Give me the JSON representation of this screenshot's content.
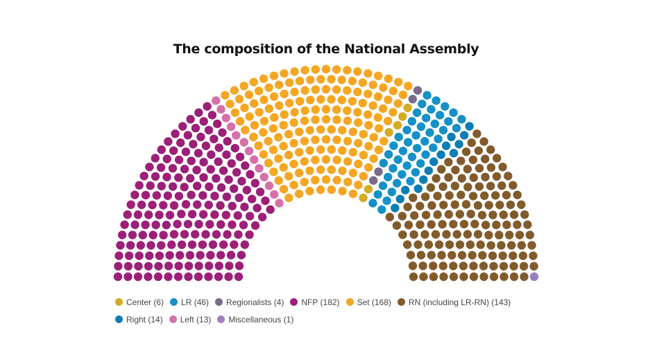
{
  "chart_data": {
    "type": "parliament",
    "title": "The composition of the National Assembly",
    "total_seats": 577,
    "series": [
      {
        "name": "NFP",
        "seats": 182,
        "color": "#9c1f78"
      },
      {
        "name": "Left",
        "seats": 13,
        "color": "#d670a8"
      },
      {
        "name": "Set",
        "seats": 168,
        "color": "#f5a623"
      },
      {
        "name": "Center",
        "seats": 6,
        "color": "#d4ab24"
      },
      {
        "name": "Regionalists",
        "seats": 4,
        "color": "#7a6b8a"
      },
      {
        "name": "LR",
        "seats": 46,
        "color": "#1591c8"
      },
      {
        "name": "Right",
        "seats": 14,
        "color": "#0e7db4"
      },
      {
        "name": "RN (including LR-RN)",
        "seats": 143,
        "color": "#825b2c"
      },
      {
        "name": "Miscellaneous",
        "seats": 1,
        "color": "#9b7fc0"
      }
    ],
    "legend": [
      {
        "label": "Center (6)",
        "color": "#d4ab24"
      },
      {
        "label": "LR (46)",
        "color": "#1591c8"
      },
      {
        "label": "Regionalists (4)",
        "color": "#7a6b8a"
      },
      {
        "label": "NFP (182)",
        "color": "#9c1f78"
      },
      {
        "label": "Set (168)",
        "color": "#f5a623"
      },
      {
        "label": "RN (including LR-RN) (143)",
        "color": "#825b2c"
      },
      {
        "label": "Right (14)",
        "color": "#0e7db4"
      },
      {
        "label": "Left (13)",
        "color": "#d670a8"
      },
      {
        "label": "Miscellaneous (1)",
        "color": "#9b7fc0"
      }
    ],
    "legend_position": "bottom"
  }
}
